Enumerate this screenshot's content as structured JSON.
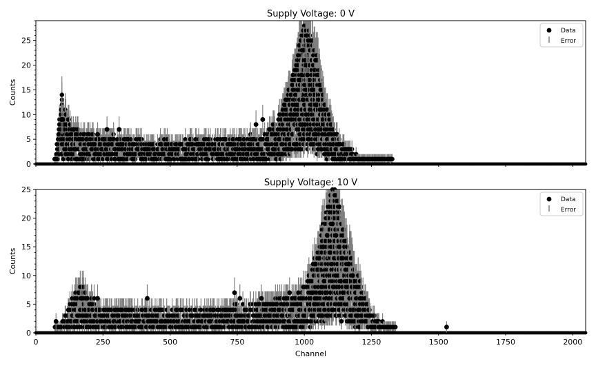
{
  "chart_data": [
    {
      "type": "scatter",
      "title": "Supply Voltage: 0 V",
      "xlabel": "",
      "ylabel": "Counts",
      "xlim": [
        0,
        2048
      ],
      "ylim": [
        0,
        29
      ],
      "yticks": [
        0,
        5,
        10,
        15,
        20,
        25
      ],
      "xticks": [
        0,
        250,
        500,
        750,
        1000,
        1250,
        1500,
        1750,
        2000
      ],
      "show_xtick_labels": false,
      "grid": false,
      "legend": {
        "placement": "top-right",
        "entries": [
          "Data",
          "Error"
        ]
      },
      "profile": {
        "description_points_x": [
          70,
          85,
          95,
          110,
          140,
          180,
          250,
          300,
          400,
          500,
          600,
          700,
          780,
          850,
          900,
          950,
          980,
          1000,
          1020,
          1050,
          1070,
          1100,
          1150,
          1200,
          1260,
          1300,
          1330
        ],
        "description_points_y": [
          0.5,
          4,
          8,
          6,
          4,
          3.5,
          3,
          3.2,
          2.6,
          2.6,
          2.8,
          2.8,
          3.2,
          3,
          5,
          9,
          13,
          16,
          15,
          12,
          8,
          5,
          2,
          1,
          0.5,
          0.3,
          0
        ]
      },
      "highlights": [
        [
          95,
          9
        ],
        [
          100,
          9
        ],
        [
          140,
          7
        ],
        [
          230,
          6
        ],
        [
          265,
          7
        ],
        [
          310,
          7
        ],
        [
          820,
          8
        ],
        [
          845,
          9
        ],
        [
          870,
          7
        ],
        [
          985,
          17
        ],
        [
          990,
          18
        ],
        [
          997,
          23
        ],
        [
          1003,
          21
        ],
        [
          1008,
          20
        ],
        [
          1012,
          18
        ],
        [
          1030,
          15
        ],
        [
          1042,
          12
        ],
        [
          1060,
          11
        ],
        [
          1320,
          1
        ]
      ]
    },
    {
      "type": "scatter",
      "title": "Supply Voltage: 10 V",
      "xlabel": "Channel",
      "ylabel": "Counts",
      "xlim": [
        0,
        2048
      ],
      "ylim": [
        0,
        25
      ],
      "yticks": [
        0,
        5,
        10,
        15,
        20,
        25
      ],
      "xticks": [
        0,
        250,
        500,
        750,
        1000,
        1250,
        1500,
        1750,
        2000
      ],
      "show_xtick_labels": true,
      "grid": false,
      "legend": {
        "placement": "top-right",
        "entries": [
          "Data",
          "Error"
        ]
      },
      "profile": {
        "description_points_x": [
          70,
          100,
          130,
          150,
          170,
          200,
          250,
          300,
          400,
          500,
          600,
          700,
          780,
          850,
          950,
          1000,
          1050,
          1080,
          1100,
          1120,
          1150,
          1180,
          1220,
          1250,
          1290,
          1330,
          1360
        ],
        "description_points_y": [
          0.5,
          1,
          3,
          4,
          4.5,
          3.5,
          2.5,
          2.5,
          2.3,
          2.2,
          2.3,
          2.3,
          2.8,
          3,
          3.5,
          4.5,
          8,
          12,
          14,
          14,
          10,
          7,
          4,
          2,
          1,
          0.6,
          0
        ],
        "cutoff_x": 1360
      },
      "highlights": [
        [
          75,
          2
        ],
        [
          170,
          6
        ],
        [
          190,
          6
        ],
        [
          230,
          6
        ],
        [
          415,
          6
        ],
        [
          740,
          7
        ],
        [
          760,
          6
        ],
        [
          840,
          6
        ],
        [
          945,
          7
        ],
        [
          1040,
          12
        ],
        [
          1055,
          13
        ],
        [
          1070,
          15
        ],
        [
          1085,
          17
        ],
        [
          1105,
          19
        ],
        [
          1118,
          17
        ],
        [
          1130,
          15
        ],
        [
          1140,
          13
        ],
        [
          1165,
          12
        ],
        [
          1180,
          10
        ],
        [
          1530,
          1
        ]
      ]
    }
  ],
  "colors": {
    "marker": "#000000",
    "error": "#808080",
    "axes": "#000000",
    "background": "#ffffff"
  }
}
